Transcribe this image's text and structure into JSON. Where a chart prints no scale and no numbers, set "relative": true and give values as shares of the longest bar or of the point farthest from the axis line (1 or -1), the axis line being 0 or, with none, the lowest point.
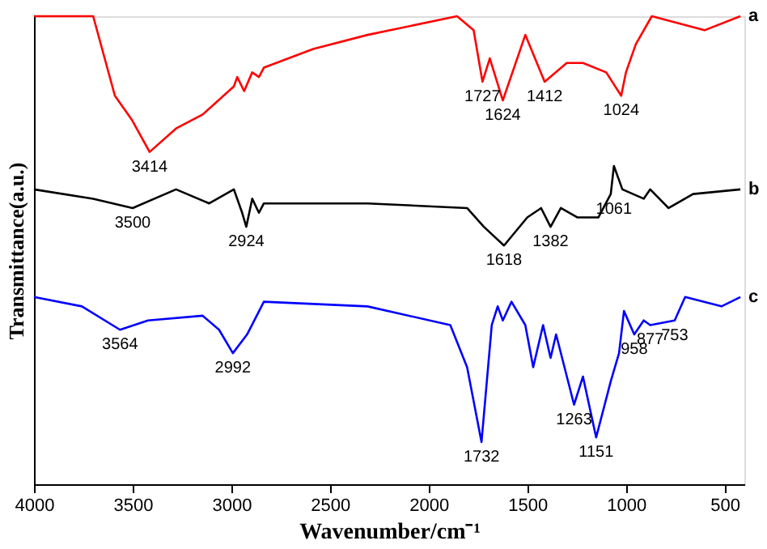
{
  "chart_data": {
    "type": "line",
    "relative": true,
    "xlabel": "Wavenumber/cm⁻¹",
    "ylabel": "Transmittance(a.u.)",
    "xlim": [
      4000,
      400
    ],
    "xticks": [
      4000,
      3500,
      3000,
      2500,
      2000,
      1500,
      1000,
      500
    ],
    "series": [
      {
        "name": "a",
        "color": "#ff0000",
        "x": [
          4000,
          3700,
          3590,
          3506,
          3414,
          3280,
          3145,
          2987,
          2970,
          2935,
          2894,
          2860,
          2835,
          2585,
          2310,
          1856,
          1772,
          1727,
          1690,
          1624,
          1510,
          1412,
          1300,
          1218,
          1100,
          1024,
          1000,
          950,
          869,
          780,
          602,
          420
        ],
        "values": [
          1.0,
          1.0,
          0.83,
          0.78,
          0.71,
          0.76,
          0.79,
          0.85,
          0.87,
          0.84,
          0.88,
          0.87,
          0.89,
          0.93,
          0.96,
          1.0,
          0.97,
          0.86,
          0.91,
          0.82,
          0.96,
          0.86,
          0.9,
          0.9,
          0.88,
          0.83,
          0.88,
          0.94,
          1.0,
          0.99,
          0.97,
          1.0
        ]
      },
      {
        "name": "b",
        "color": "#000000",
        "x": [
          4000,
          3700,
          3500,
          3280,
          3112,
          2987,
          2945,
          2924,
          2894,
          2860,
          2835,
          2310,
          1805,
          1720,
          1618,
          1500,
          1430,
          1382,
          1330,
          1245,
          1140,
          1077,
          1061,
          1018,
          910,
          877,
          784,
          660,
          420
        ],
        "values": [
          0.63,
          0.61,
          0.59,
          0.63,
          0.6,
          0.63,
          0.58,
          0.55,
          0.61,
          0.58,
          0.6,
          0.6,
          0.59,
          0.55,
          0.51,
          0.57,
          0.59,
          0.55,
          0.59,
          0.57,
          0.57,
          0.62,
          0.68,
          0.63,
          0.61,
          0.63,
          0.59,
          0.62,
          0.63
        ]
      },
      {
        "name": "c",
        "color": "#0000ff",
        "x": [
          4000,
          3757,
          3564,
          3422,
          3145,
          3062,
          2992,
          2920,
          2835,
          2310,
          1890,
          1805,
          1732,
          1680,
          1650,
          1624,
          1580,
          1510,
          1470,
          1420,
          1382,
          1354,
          1263,
          1218,
          1151,
          1077,
          1035,
          1010,
          958,
          910,
          877,
          753,
          700,
          516,
          420
        ],
        "values": [
          0.4,
          0.38,
          0.33,
          0.35,
          0.36,
          0.33,
          0.28,
          0.32,
          0.39,
          0.38,
          0.34,
          0.25,
          0.09,
          0.34,
          0.38,
          0.35,
          0.39,
          0.34,
          0.25,
          0.34,
          0.27,
          0.32,
          0.17,
          0.23,
          0.1,
          0.22,
          0.28,
          0.37,
          0.32,
          0.35,
          0.34,
          0.35,
          0.4,
          0.38,
          0.4
        ]
      }
    ],
    "annotations": [
      {
        "text": "3414",
        "x": 3414,
        "y": 0.71
      },
      {
        "text": "1727",
        "x": 1727,
        "y": 0.86
      },
      {
        "text": "1624",
        "x": 1624,
        "y": 0.82
      },
      {
        "text": "1412",
        "x": 1412,
        "y": 0.86
      },
      {
        "text": "1024",
        "x": 1024,
        "y": 0.83
      },
      {
        "text": "3500",
        "x": 3500,
        "y": 0.59
      },
      {
        "text": "2924",
        "x": 2924,
        "y": 0.55
      },
      {
        "text": "1618",
        "x": 1618,
        "y": 0.51
      },
      {
        "text": "1382",
        "x": 1382,
        "y": 0.55
      },
      {
        "text": "1061",
        "x": 1061,
        "y": 0.68
      },
      {
        "text": "3564",
        "x": 3564,
        "y": 0.33
      },
      {
        "text": "2992",
        "x": 2992,
        "y": 0.28
      },
      {
        "text": "1732",
        "x": 1732,
        "y": 0.09
      },
      {
        "text": "1263",
        "x": 1263,
        "y": 0.17
      },
      {
        "text": "1151",
        "x": 1151,
        "y": 0.1
      },
      {
        "text": "958",
        "x": 958,
        "y": 0.32
      },
      {
        "text": "877",
        "x": 877,
        "y": 0.34
      },
      {
        "text": "753",
        "x": 753,
        "y": 0.35
      }
    ]
  }
}
